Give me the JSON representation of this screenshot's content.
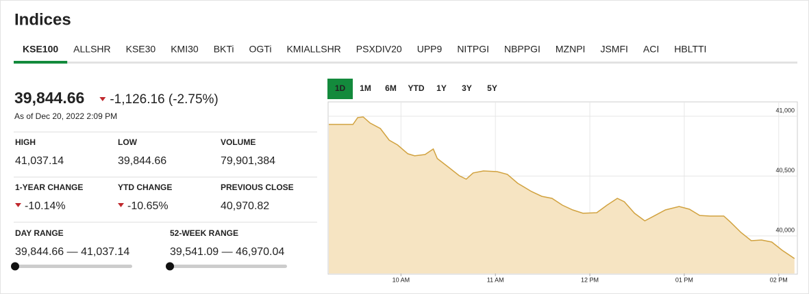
{
  "header": {
    "title": "Indices"
  },
  "tabs": [
    "KSE100",
    "ALLSHR",
    "KSE30",
    "KMI30",
    "BKTi",
    "OGTi",
    "KMIALLSHR",
    "PSXDIV20",
    "UPP9",
    "NITPGI",
    "NBPPGI",
    "MZNPI",
    "JSMFI",
    "ACI",
    "HBLTTI"
  ],
  "active_tab": 0,
  "quote": {
    "price": "39,844.66",
    "change": "-1,126.16 (-2.75%)",
    "as_of": "As of Dec 20, 2022 2:09 PM"
  },
  "stats": [
    {
      "label": "HIGH",
      "value": "41,037.14"
    },
    {
      "label": "LOW",
      "value": "39,844.66"
    },
    {
      "label": "VOLUME",
      "value": "79,901,384"
    },
    {
      "label": "1-YEAR CHANGE",
      "value": "-10.14%"
    },
    {
      "label": "YTD CHANGE",
      "value": "-10.65%"
    },
    {
      "label": "PREVIOUS CLOSE",
      "value": "40,970.82"
    }
  ],
  "ranges": [
    {
      "label": "DAY RANGE",
      "value": "39,844.66 — 41,037.14"
    },
    {
      "label": "52-WEEK RANGE",
      "value": "39,541.09 — 46,970.04"
    }
  ],
  "chart_data": {
    "type": "area",
    "range_buttons": [
      "1D",
      "1M",
      "6M",
      "YTD",
      "1Y",
      "3Y",
      "5Y"
    ],
    "active_range": 0,
    "x": [
      9.236,
      9.491,
      9.542,
      9.6,
      9.673,
      9.782,
      9.876,
      9.964,
      10.073,
      10.145,
      10.255,
      10.342,
      10.385,
      10.509,
      10.618,
      10.691,
      10.764,
      10.873,
      11.018,
      11.127,
      11.236,
      11.382,
      11.491,
      11.6,
      11.709,
      11.818,
      11.927,
      12.073,
      12.182,
      12.291,
      12.364,
      12.473,
      12.582,
      12.691,
      12.8,
      12.945,
      13.055,
      13.164,
      13.273,
      13.418,
      13.491,
      13.6,
      13.709,
      13.818,
      13.927,
      14.036,
      14.167
    ],
    "values": [
      40931,
      40931,
      40989,
      40994,
      40943,
      40897,
      40800,
      40760,
      40686,
      40669,
      40680,
      40726,
      40646,
      40571,
      40503,
      40474,
      40526,
      40543,
      40537,
      40514,
      40440,
      40371,
      40331,
      40314,
      40257,
      40217,
      40189,
      40194,
      40257,
      40314,
      40286,
      40189,
      40126,
      40171,
      40217,
      40246,
      40223,
      40171,
      40166,
      40166,
      40114,
      40029,
      39960,
      39966,
      39949,
      39880,
      39811
    ],
    "color": "#d1a23f",
    "fill": "#f6e4c2",
    "xlim": [
      9.236,
      14.19
    ],
    "xticks": [
      {
        "value": 10,
        "label": "10 AM"
      },
      {
        "value": 11,
        "label": "11 AM"
      },
      {
        "value": 12,
        "label": "12 PM"
      },
      {
        "value": 13,
        "label": "01 PM"
      },
      {
        "value": 14,
        "label": "02 PM"
      }
    ],
    "ylim": [
      39686,
      41114
    ],
    "yticks": [
      {
        "value": 40000,
        "label": "40,000"
      },
      {
        "value": 40500,
        "label": "40,500"
      },
      {
        "value": 41000,
        "label": "41,000"
      }
    ],
    "grid": true
  }
}
